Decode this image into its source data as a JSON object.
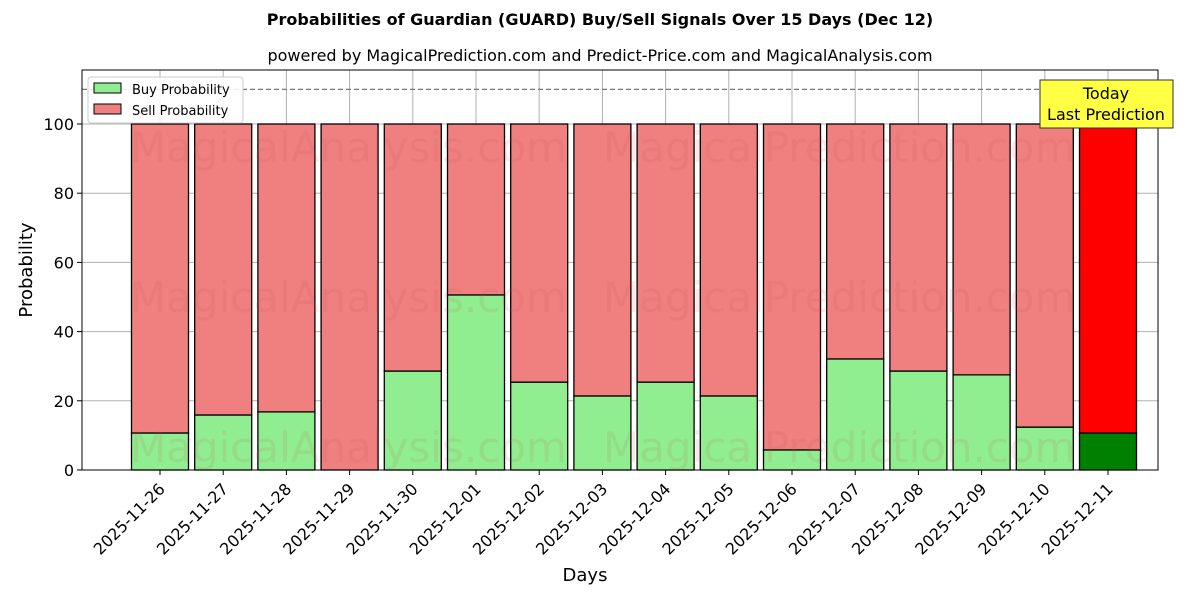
{
  "chart_data": {
    "type": "bar",
    "stacked": true,
    "title": "Probabilities of Guardian (GUARD) Buy/Sell Signals Over 15 Days (Dec 12)",
    "subtitle": "powered by MagicalPrediction.com and Predict-Price.com and MagicalAnalysis.com",
    "xlabel": "Days",
    "ylabel": "Probability",
    "ylim": [
      0,
      115
    ],
    "yticks": [
      0,
      20,
      40,
      60,
      80,
      100
    ],
    "grid": true,
    "dashed_line_y": 110,
    "legend_position": "upper left",
    "categories": [
      "2025-11-26",
      "2025-11-27",
      "2025-11-28",
      "2025-11-29",
      "2025-11-30",
      "2025-12-01",
      "2025-12-02",
      "2025-12-03",
      "2025-12-04",
      "2025-12-05",
      "2025-12-06",
      "2025-12-07",
      "2025-12-08",
      "2025-12-09",
      "2025-12-10",
      "2025-12-11"
    ],
    "series": [
      {
        "name": "Buy Probability",
        "color": "#90ee90",
        "values": [
          10.7,
          15.9,
          16.8,
          0,
          28.6,
          50.6,
          25.4,
          21.4,
          25.4,
          21.4,
          5.8,
          32.1,
          28.6,
          27.5,
          12.4,
          10.7
        ]
      },
      {
        "name": "Sell Probability",
        "color": "#f08080",
        "values": [
          89.3,
          84.1,
          83.2,
          100,
          71.4,
          49.4,
          74.6,
          78.6,
          74.6,
          78.6,
          94.2,
          67.9,
          71.4,
          72.5,
          87.6,
          89.3
        ]
      }
    ],
    "highlight": {
      "index": 15,
      "buy_color": "#008000",
      "sell_color": "#ff0000"
    },
    "annotation": {
      "text_line1": "Today",
      "text_line2": "Last Prediction",
      "bg": "#ffff44"
    },
    "watermarks": [
      "MagicalAnalysis.com",
      "MagicalPrediction.com"
    ]
  }
}
